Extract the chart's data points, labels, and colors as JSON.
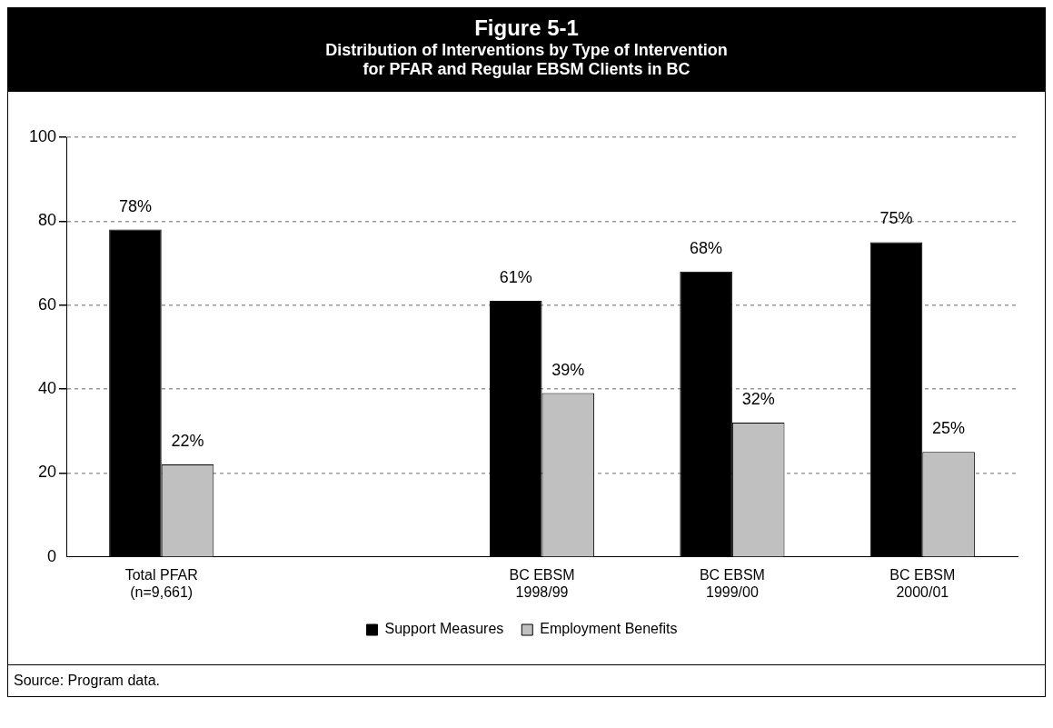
{
  "chart_data": {
    "type": "bar",
    "title": "Figure 5-1",
    "subtitle": "Distribution of Interventions by Type of Intervention\nfor PFAR and Regular EBSM Clients in BC",
    "categories": [
      "Total PFAR\n(n=9,661)",
      null,
      "BC EBSM\n1998/99",
      "BC EBSM\n1999/00",
      "BC EBSM\n2000/01"
    ],
    "series": [
      {
        "name": "Support Measures",
        "color": "#000000",
        "values": [
          78,
          null,
          61,
          68,
          75
        ],
        "value_labels": [
          "78%",
          null,
          "61%",
          "68%",
          "75%"
        ]
      },
      {
        "name": "Employment Benefits",
        "color": "#c0c0c0",
        "values": [
          22,
          null,
          39,
          32,
          25
        ],
        "value_labels": [
          "22%",
          null,
          "39%",
          "32%",
          "25%"
        ]
      }
    ],
    "ylim": [
      0,
      100
    ],
    "yticks": [
      0,
      20,
      40,
      60,
      80,
      100
    ],
    "grid": "y",
    "legend": "bottom",
    "annotations": [
      "Source: Program data."
    ]
  }
}
